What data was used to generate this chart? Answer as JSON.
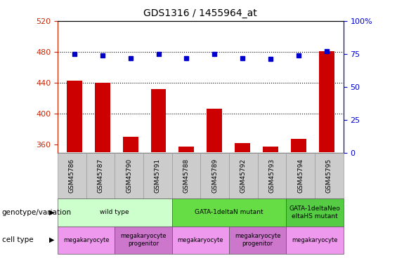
{
  "title": "GDS1316 / 1455964_at",
  "samples": [
    "GSM45786",
    "GSM45787",
    "GSM45790",
    "GSM45791",
    "GSM45788",
    "GSM45789",
    "GSM45792",
    "GSM45793",
    "GSM45794",
    "GSM45795"
  ],
  "counts": [
    443,
    440,
    370,
    432,
    358,
    407,
    362,
    358,
    368,
    481
  ],
  "percentiles": [
    75,
    74,
    72,
    75,
    72,
    75,
    72,
    71,
    74,
    77
  ],
  "ylim_left": [
    350,
    520
  ],
  "ylim_right": [
    0,
    100
  ],
  "yticks_left": [
    360,
    400,
    440,
    480,
    520
  ],
  "yticks_right": [
    0,
    25,
    50,
    75,
    100
  ],
  "bar_color": "#cc0000",
  "dot_color": "#0000cc",
  "groups": [
    {
      "label": "wild type",
      "start": 0,
      "end": 4,
      "color": "#ccffcc"
    },
    {
      "label": "GATA-1deltaN mutant",
      "start": 4,
      "end": 8,
      "color": "#66dd44"
    },
    {
      "label": "GATA-1deltaNeo\neltaHS mutant",
      "start": 8,
      "end": 10,
      "color": "#55cc44"
    }
  ],
  "cell_types": [
    {
      "label": "megakaryocyte",
      "start": 0,
      "end": 2,
      "color": "#ee99ee"
    },
    {
      "label": "megakaryocyte\nprogenitor",
      "start": 2,
      "end": 4,
      "color": "#cc77cc"
    },
    {
      "label": "megakaryocyte",
      "start": 4,
      "end": 6,
      "color": "#ee99ee"
    },
    {
      "label": "megakaryocyte\nprogenitor",
      "start": 6,
      "end": 8,
      "color": "#cc77cc"
    },
    {
      "label": "megakaryocyte",
      "start": 8,
      "end": 10,
      "color": "#ee99ee"
    }
  ],
  "left_axis_color": "#cc2200",
  "right_axis_color": "#0000cc",
  "xlabel_bg_color": "#cccccc",
  "baseline": 350
}
